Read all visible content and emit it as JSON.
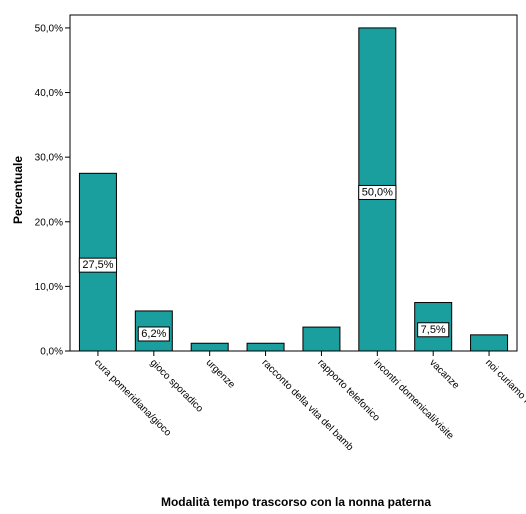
{
  "chart_data": {
    "type": "bar",
    "title": "",
    "xlabel": "Modalità tempo trascorso con la nonna paterna",
    "ylabel": "Percentuale",
    "ylim": [
      0,
      50
    ],
    "yticks": [
      "0,0%",
      "10,0%",
      "20,0%",
      "30,0%",
      "40,0%",
      "50,0%"
    ],
    "categories": [
      "cura pomeridiana/gioco",
      "gioco sporadico",
      "urgenze",
      "racconto della vita del bamb",
      "rapporto telefonico",
      "incontri domenicali/visite",
      "vacanze",
      "noi curiamo la n"
    ],
    "values": [
      27.5,
      6.2,
      1.2,
      1.2,
      3.7,
      50.0,
      7.5,
      2.5
    ],
    "data_labels": [
      "27,5%",
      "6,2%",
      "",
      "",
      "",
      "50,0%",
      "7,5%",
      ""
    ],
    "bar_color": "#1a9e9e",
    "grid": false,
    "legend": "none"
  }
}
